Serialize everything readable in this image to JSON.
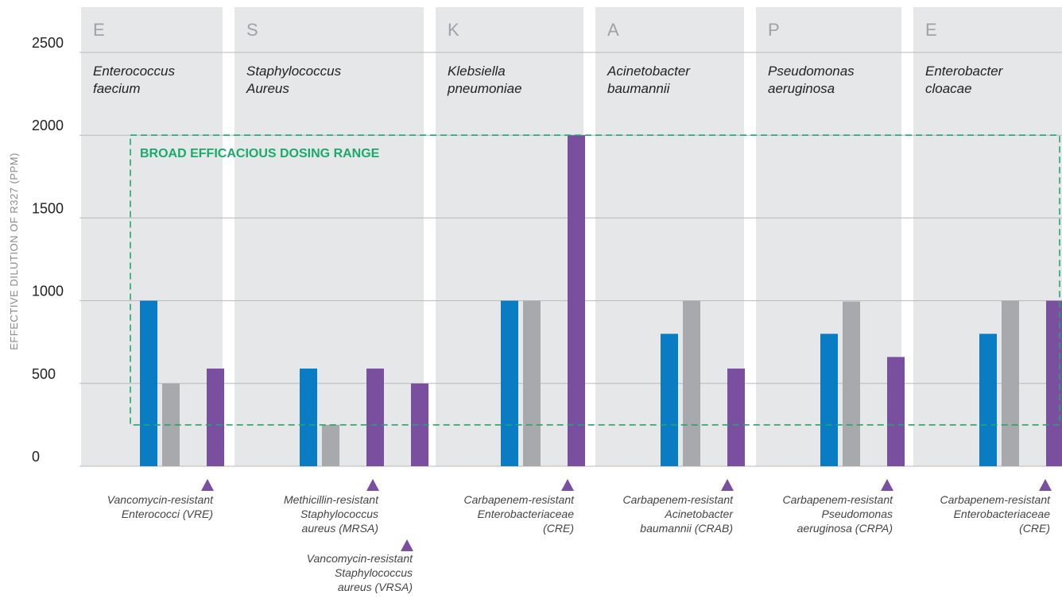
{
  "chart_data": {
    "type": "bar",
    "ylabel": "EFFECTIVE DILUTION OF R327 (PPM)",
    "ylim": [
      0,
      2500
    ],
    "yticks": [
      0,
      500,
      1000,
      1500,
      2000,
      2500
    ],
    "grid": true,
    "annotation": {
      "label": "BROAD EFFICACIOUS DOSING RANGE",
      "range": [
        250,
        2000
      ],
      "color": "#1aaa6b"
    },
    "colors": {
      "blue": "#0a7cc4",
      "gray": "#a7a9ac",
      "purple": "#7b4fa0",
      "panel": "#e6e7e8",
      "grid": "#b9b9b9"
    },
    "groups": [
      {
        "letter": "E",
        "name_line1": "Enterococcus",
        "name_line2": "faecium",
        "bars": [
          {
            "color": "blue",
            "value": 1000
          },
          {
            "color": "gray",
            "value": 500
          },
          {
            "color": "purple",
            "value": 590,
            "resistant": "Vancomycin-resistant Enterococci (VRE)"
          }
        ],
        "notes": [
          {
            "lines": [
              "Vancomycin-resistant",
              "Enterococci (VRE)"
            ]
          }
        ]
      },
      {
        "letter": "S",
        "name_line1": "Staphylococcus",
        "name_line2": "Aureus",
        "bars": [
          {
            "color": "blue",
            "value": 590
          },
          {
            "color": "gray",
            "value": 250
          },
          {
            "color": "purple",
            "value": 590,
            "resistant": "Methicillin-resistant Staphylococcus aureus (MRSA)"
          },
          {
            "color": "purple",
            "value": 500,
            "resistant": "Vancomycin-resistant Staphylococcus aureus (VRSA)"
          }
        ],
        "notes": [
          {
            "lines": [
              "Methicillin-resistant",
              "Staphylococcus",
              "aureus (MRSA)"
            ]
          },
          {
            "lines": [
              "Vancomycin-resistant",
              "Staphylococcus",
              "aureus (VRSA)"
            ]
          }
        ]
      },
      {
        "letter": "K",
        "name_line1": "Klebsiella",
        "name_line2": "pneumoniae",
        "bars": [
          {
            "color": "blue",
            "value": 1000
          },
          {
            "color": "gray",
            "value": 1000
          },
          {
            "color": "purple",
            "value": 2000,
            "resistant": "Carbapenem-resistant Enterobacteriaceae (CRE)"
          }
        ],
        "notes": [
          {
            "lines": [
              "Carbapenem-resistant",
              "Enterobacteriaceae",
              "(CRE)"
            ]
          }
        ]
      },
      {
        "letter": "A",
        "name_line1": "Acinetobacter",
        "name_line2": "baumannii",
        "bars": [
          {
            "color": "blue",
            "value": 800
          },
          {
            "color": "gray",
            "value": 1000
          },
          {
            "color": "purple",
            "value": 590,
            "resistant": "Carbapenem-resistant Acinetobacter baumannii (CRAB)"
          }
        ],
        "notes": [
          {
            "lines": [
              "Carbapenem-resistant",
              "Acinetobacter",
              "baumannii (CRAB)"
            ]
          }
        ]
      },
      {
        "letter": "P",
        "name_line1": "Pseudomonas",
        "name_line2": "aeruginosa",
        "bars": [
          {
            "color": "blue",
            "value": 800
          },
          {
            "color": "gray",
            "value": 995
          },
          {
            "color": "purple",
            "value": 660,
            "resistant": "Carbapenem-resistant Pseudomonas aeruginosa (CRPA)"
          }
        ],
        "notes": [
          {
            "lines": [
              "Carbapenem-resistant",
              "Pseudomonas",
              "aeruginosa (CRPA)"
            ]
          }
        ]
      },
      {
        "letter": "E",
        "name_line1": "Enterobacter",
        "name_line2": "cloacae",
        "bars": [
          {
            "color": "blue",
            "value": 800
          },
          {
            "color": "gray",
            "value": 1000
          },
          {
            "color": "purple",
            "value": 1000,
            "resistant": "Carbapenem-resistant Enterobacteriaceae (CRE)"
          }
        ],
        "notes": [
          {
            "lines": [
              "Carbapenem-resistant",
              "Enterobacteriaceae",
              "(CRE)"
            ]
          }
        ]
      }
    ]
  }
}
